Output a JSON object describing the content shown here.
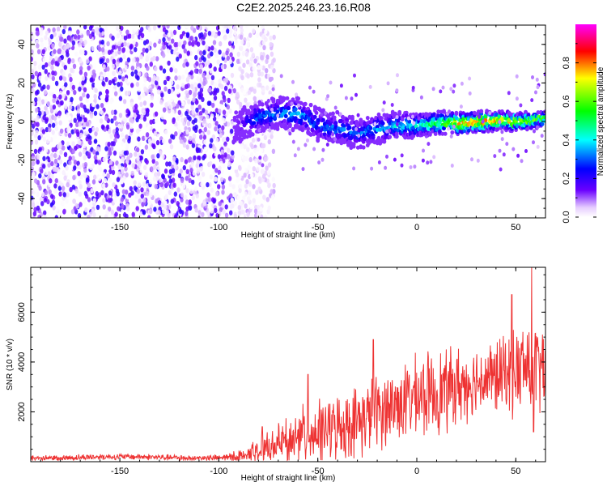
{
  "title": "C2E2.2025.246.23.16.R08",
  "chart_data": [
    {
      "type": "heatmap",
      "xlabel": "Height of straight line (km)",
      "ylabel": "Frequency (Hz)",
      "xlim": [
        -195,
        65
      ],
      "ylim": [
        -50,
        50
      ],
      "xticks": [
        -150,
        -100,
        -50,
        0,
        50
      ],
      "yticks": [
        -40,
        -20,
        0,
        20,
        40
      ],
      "colorbar": {
        "label": "Normalized spectral amplitude",
        "range": [
          0,
          1
        ],
        "ticks": [
          "0.0",
          "0.2",
          "0.4",
          "0.6",
          "0.8"
        ],
        "colormap": [
          "#ffffff",
          "#6a00ff",
          "#0000ff",
          "#00ffff",
          "#00ff00",
          "#ffff00",
          "#ff0000",
          "#ff00ff"
        ]
      },
      "noise_region_x": [
        -195,
        -80
      ],
      "signal_band": {
        "x": [
          -90,
          -80,
          -70,
          -60,
          -50,
          -40,
          -30,
          -20,
          -10,
          0,
          10,
          20,
          30,
          40,
          50,
          60,
          65
        ],
        "center_freq": [
          -2,
          2,
          4,
          4,
          -2,
          -4,
          -6,
          -4,
          -2,
          -2,
          -1,
          -1,
          0,
          0,
          0,
          1,
          2
        ],
        "peak_amplitude": [
          0.15,
          0.3,
          0.35,
          0.38,
          0.3,
          0.32,
          0.3,
          0.35,
          0.4,
          0.45,
          0.55,
          0.75,
          0.85,
          0.8,
          0.75,
          0.7,
          0.6
        ]
      }
    },
    {
      "type": "line",
      "xlabel": "Height of straight line (km)",
      "ylabel": "SNR (10 * v/v)",
      "xlim": [
        -195,
        65
      ],
      "ylim": [
        0,
        7800
      ],
      "xticks": [
        -150,
        -100,
        -50,
        0,
        50
      ],
      "yticks": [
        2000,
        4000,
        6000
      ],
      "series": [
        {
          "color": "#ee3333",
          "x": [
            -195,
            -180,
            -160,
            -140,
            -120,
            -100,
            -90,
            -80,
            -70,
            -60,
            -50,
            -40,
            -30,
            -20,
            -10,
            0,
            10,
            20,
            30,
            40,
            50,
            55,
            60,
            65
          ],
          "baseline": [
            150,
            150,
            200,
            200,
            150,
            150,
            200,
            400,
            700,
            1000,
            1200,
            1400,
            1600,
            2000,
            2300,
            2600,
            2800,
            3000,
            3300,
            3400,
            3600,
            3800,
            3800,
            3800
          ],
          "spread": [
            150,
            150,
            150,
            150,
            150,
            150,
            300,
            600,
            900,
            1400,
            1400,
            1500,
            1700,
            1800,
            1800,
            1900,
            2000,
            1900,
            1600,
            1800,
            2000,
            2400,
            2400,
            2000
          ],
          "peaks": [
            [
              -22,
              4900
            ],
            [
              -55,
              3500
            ],
            [
              -78,
              1400
            ],
            [
              48,
              6700
            ],
            [
              58,
              7800
            ],
            [
              59,
              1200
            ]
          ]
        }
      ]
    }
  ]
}
